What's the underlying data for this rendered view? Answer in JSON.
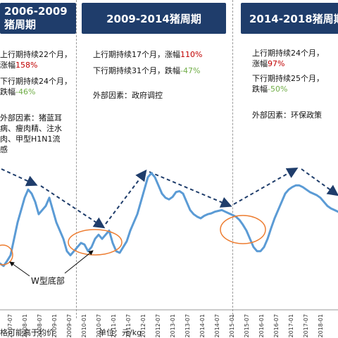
{
  "headers": {
    "h1_line1": "2006-2009",
    "h1_line2": "猪周期",
    "h2": "2009-2014猪周期",
    "h3": "2014-2018猪周期"
  },
  "cycle1": {
    "up_line1": "上行期持续22个月，",
    "up_line2_prefix": "涨幅",
    "up_pct": "158%",
    "down_line1": "下行期持续24个月，",
    "down_line2_prefix": "跌幅",
    "down_pct": "-46%",
    "ext_line1": "外部因素：猪蓝耳",
    "ext_line2": "病、瘦肉精、注水",
    "ext_line3": "肉、甲型H1N1流",
    "ext_line4": "感"
  },
  "cycle2": {
    "up_prefix": "上行期持续17个月，涨幅",
    "up_pct": "110%",
    "down_prefix": "下行期持续31个月，跌幅",
    "down_pct": "-47%",
    "ext": "外部因素：政府调控"
  },
  "cycle3": {
    "up_line1": "上行期持续24个月，",
    "up_line2_prefix": "涨幅",
    "up_pct": "97%",
    "down_line1": "下行期持续25个月，",
    "down_line2_prefix": "跌幅",
    "down_pct": "-50%",
    "ext": "外部因素：环保政策"
  },
  "annotation": "W型底部",
  "footer": {
    "left": "格可能高于均价",
    "unit": "单位：元/kg"
  },
  "colors": {
    "line": "#5b9bd5",
    "trend": "#1f3d6b",
    "ellipse": "#ed7d31",
    "header_bg": "#1f3d6b",
    "up": "#c00000",
    "down": "#70ad47"
  },
  "chart_data": {
    "type": "line",
    "x_tick_labels": [
      "2007-01",
      "2007-07",
      "2008-01",
      "2008-07",
      "2009-01",
      "2009-07",
      "2010-01",
      "2010-07",
      "2011-01",
      "2011-07",
      "2012-01",
      "2012-07",
      "2013-01",
      "2013-07",
      "2014-01",
      "2014-07",
      "2015-01",
      "2015-07",
      "2016-01",
      "2016-07",
      "2017-01",
      "2017-07",
      "2018-01"
    ],
    "series": [
      {
        "values": [
          8.5,
          8.2,
          8.8,
          9.5,
          11.5,
          13.5,
          15,
          16.5,
          17.5,
          17,
          16,
          14.5,
          15,
          15.5,
          16.5,
          15,
          13.5,
          12.5,
          11.5,
          10,
          9.5,
          10,
          10.5,
          11,
          10.8,
          10,
          10.5,
          11.5,
          12,
          11.5,
          12,
          12.5,
          11,
          10,
          9.8,
          10.5,
          11.2,
          12.5,
          13.5,
          14.5,
          16,
          17.5,
          19,
          19.5,
          19,
          18,
          17,
          16.5,
          16.3,
          16.6,
          17.2,
          17.3,
          17,
          16,
          15,
          14.5,
          14.2,
          14,
          14.3,
          14.5,
          14.6,
          14.8,
          14.9,
          15,
          14.8,
          14.6,
          14.4,
          14.2,
          13.8,
          13.2,
          12.5,
          11.5,
          10.5,
          10,
          10,
          10.5,
          11.5,
          12.8,
          14,
          15,
          16,
          17,
          17.5,
          17.8,
          18,
          18,
          17.8,
          17.5,
          17.2,
          17,
          16.8,
          16.5,
          16,
          15.5,
          15.2,
          15,
          14.8
        ]
      }
    ]
  }
}
